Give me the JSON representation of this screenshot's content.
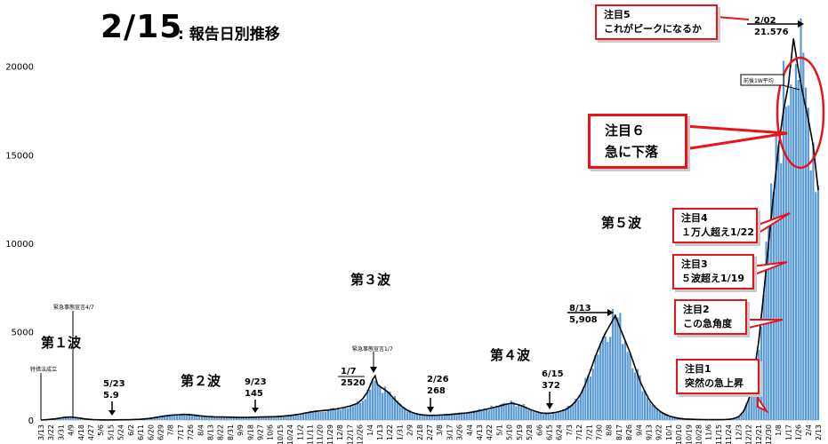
{
  "title": {
    "date": "2/15",
    "rest": ": 報告日別推移"
  },
  "waves": [
    {
      "id": "w1",
      "text": "第１波"
    },
    {
      "id": "w2",
      "text": "第２波"
    },
    {
      "id": "w3",
      "text": "第３波"
    },
    {
      "id": "w4",
      "text": "第４波"
    },
    {
      "id": "w5",
      "text": "第５波"
    }
  ],
  "annotations": {
    "law": "特措法成立",
    "emergency1": "緊急事態宣言4/7",
    "emergency2": "緊急事態宣言1/7",
    "a_523_date": "5/23",
    "a_523_val": "5.9",
    "a_923_date": "9/23",
    "a_923_val": "145",
    "a_17_date": "1/7",
    "a_17_val": "2520",
    "a_226_date": "2/26",
    "a_226_val": "268",
    "a_615_date": "6/15",
    "a_615_val": "372",
    "a_813_date": "8/13",
    "a_813_val": "5,908",
    "a_202_date": "2/02",
    "a_202_val": "21.576",
    "avg_label": "前後1W平均"
  },
  "callouts": {
    "c5": {
      "l1": "注目5",
      "l2": "これがピークになるか"
    },
    "c6": {
      "l1": "注目６",
      "l2": "急に下落"
    },
    "c4": {
      "l1": "注目4",
      "l2": "１万人超え1/22"
    },
    "c3": {
      "l1": "注目3",
      "l2": "５波超え1/19"
    },
    "c2": {
      "l1": "注目2",
      "l2": "この急角度"
    },
    "c1": {
      "l1": "注目1",
      "l2": "突然の急上昇"
    }
  },
  "colors": {
    "bars": "#5b9bd5",
    "line": "#000000",
    "callout_border": "#e8141c",
    "axis": "#bfbfbf"
  },
  "chart_data": {
    "type": "bar",
    "series": [
      {
        "name": "",
        "kind": "bar",
        "values": "daily reported cases, weekly samples listed in points"
      },
      {
        "name": "前後1W平均",
        "kind": "line"
      }
    ],
    "ylim": [
      0,
      23000
    ],
    "yticks": [
      0,
      5000,
      10000,
      15000,
      20000
    ],
    "grid": false,
    "xticklabels": [
      "3/13",
      "3/22",
      "3/31",
      "4/9",
      "4/18",
      "4/27",
      "5/6",
      "5/15",
      "5/24",
      "6/2",
      "6/11",
      "6/20",
      "6/29",
      "7/8",
      "7/17",
      "7/26",
      "8/4",
      "8/13",
      "8/22",
      "8/31",
      "9/9",
      "9/18",
      "9/27",
      "10/6",
      "10/15",
      "10/24",
      "11/2",
      "11/11",
      "11/20",
      "11/29",
      "12/8",
      "12/17",
      "12/26",
      "1/4",
      "1/13",
      "1/22",
      "1/31",
      "2/9",
      "2/18",
      "2/27",
      "3/8",
      "3/17",
      "3/26",
      "4/4",
      "4/13",
      "4/22",
      "5/1",
      "5/10",
      "5/19",
      "5/28",
      "6/6",
      "6/15",
      "6/24",
      "7/3",
      "7/12",
      "7/21",
      "7/30",
      "8/8",
      "8/17",
      "8/26",
      "9/4",
      "9/13",
      "9/22",
      "10/1",
      "10/10",
      "10/19",
      "10/28",
      "11/6",
      "11/15",
      "11/24",
      "12/3",
      "12/12",
      "12/21",
      "12/30",
      "1/8",
      "1/17",
      "1/26",
      "2/4",
      "2/13"
    ],
    "points": [
      [
        0,
        0
      ],
      [
        3,
        30
      ],
      [
        6,
        70
      ],
      [
        9,
        140
      ],
      [
        12,
        170
      ],
      [
        15,
        120
      ],
      [
        18,
        60
      ],
      [
        21,
        20
      ],
      [
        24,
        8
      ],
      [
        27,
        6
      ],
      [
        30,
        10
      ],
      [
        33,
        15
      ],
      [
        36,
        20
      ],
      [
        40,
        40
      ],
      [
        44,
        90
      ],
      [
        47,
        160
      ],
      [
        50,
        230
      ],
      [
        53,
        280
      ],
      [
        56,
        300
      ],
      [
        58,
        320
      ],
      [
        61,
        290
      ],
      [
        64,
        240
      ],
      [
        67,
        200
      ],
      [
        70,
        180
      ],
      [
        73,
        170
      ],
      [
        77,
        160
      ],
      [
        80,
        145
      ],
      [
        83,
        150
      ],
      [
        86,
        160
      ],
      [
        89,
        170
      ],
      [
        92,
        180
      ],
      [
        95,
        190
      ],
      [
        98,
        220
      ],
      [
        101,
        260
      ],
      [
        104,
        320
      ],
      [
        107,
        400
      ],
      [
        110,
        470
      ],
      [
        113,
        520
      ],
      [
        116,
        560
      ],
      [
        119,
        620
      ],
      [
        122,
        700
      ],
      [
        125,
        800
      ],
      [
        128,
        950
      ],
      [
        130,
        1200
      ],
      [
        132,
        1600
      ],
      [
        134,
        2300
      ],
      [
        135,
        2500
      ],
      [
        136,
        2000
      ],
      [
        138,
        1800
      ],
      [
        140,
        1600
      ],
      [
        142,
        1300
      ],
      [
        144,
        1000
      ],
      [
        146,
        750
      ],
      [
        148,
        550
      ],
      [
        150,
        420
      ],
      [
        152,
        340
      ],
      [
        154,
        290
      ],
      [
        156,
        270
      ],
      [
        158,
        268
      ],
      [
        160,
        270
      ],
      [
        163,
        290
      ],
      [
        166,
        320
      ],
      [
        169,
        360
      ],
      [
        172,
        400
      ],
      [
        175,
        460
      ],
      [
        178,
        550
      ],
      [
        181,
        650
      ],
      [
        184,
        750
      ],
      [
        186,
        820
      ],
      [
        188,
        900
      ],
      [
        190,
        950
      ],
      [
        192,
        900
      ],
      [
        194,
        820
      ],
      [
        196,
        700
      ],
      [
        198,
        580
      ],
      [
        200,
        480
      ],
      [
        202,
        400
      ],
      [
        204,
        372
      ],
      [
        206,
        390
      ],
      [
        208,
        430
      ],
      [
        210,
        500
      ],
      [
        212,
        600
      ],
      [
        214,
        780
      ],
      [
        216,
        1050
      ],
      [
        218,
        1450
      ],
      [
        220,
        2050
      ],
      [
        222,
        2800
      ],
      [
        224,
        3600
      ],
      [
        226,
        4300
      ],
      [
        228,
        4900
      ],
      [
        230,
        5400
      ],
      [
        232,
        5908
      ],
      [
        234,
        5200
      ],
      [
        236,
        4500
      ],
      [
        238,
        3800
      ],
      [
        240,
        3000
      ],
      [
        242,
        2200
      ],
      [
        244,
        1600
      ],
      [
        246,
        1100
      ],
      [
        248,
        750
      ],
      [
        250,
        500
      ],
      [
        252,
        330
      ],
      [
        254,
        220
      ],
      [
        256,
        140
      ],
      [
        258,
        90
      ],
      [
        260,
        60
      ],
      [
        262,
        45
      ],
      [
        264,
        35
      ],
      [
        266,
        28
      ],
      [
        268,
        25
      ],
      [
        270,
        22
      ],
      [
        272,
        20
      ],
      [
        274,
        22
      ],
      [
        276,
        25
      ],
      [
        278,
        40
      ],
      [
        280,
        90
      ],
      [
        282,
        200
      ],
      [
        284,
        520
      ],
      [
        286,
        1200
      ],
      [
        288,
        2600
      ],
      [
        290,
        4500
      ],
      [
        292,
        7200
      ],
      [
        294,
        10000
      ],
      [
        296,
        12800
      ],
      [
        298,
        15500
      ],
      [
        300,
        17500
      ],
      [
        302,
        19000
      ],
      [
        304,
        21576
      ],
      [
        306,
        19800
      ],
      [
        308,
        18300
      ],
      [
        310,
        17000
      ],
      [
        312,
        15500
      ],
      [
        314,
        13000
      ]
    ],
    "marked_points": [
      {
        "label": "5/23",
        "value": 5.9
      },
      {
        "label": "9/23",
        "value": 145
      },
      {
        "label": "1/7",
        "value": 2520
      },
      {
        "label": "2/26",
        "value": 268
      },
      {
        "label": "6/15",
        "value": 372
      },
      {
        "label": "8/13",
        "value": 5908
      },
      {
        "label": "2/02",
        "value": 21576
      }
    ]
  }
}
